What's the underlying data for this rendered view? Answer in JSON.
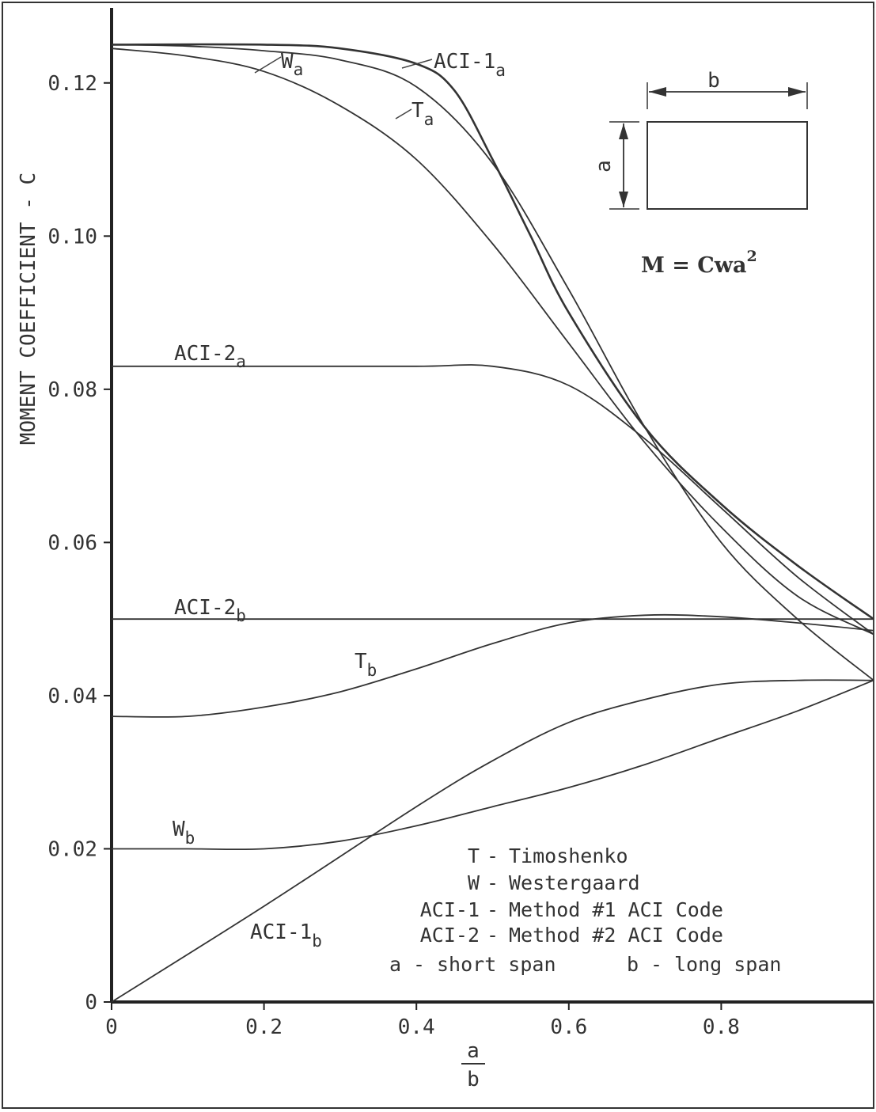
{
  "chart_data": {
    "type": "line",
    "xlabel_top": "a",
    "xlabel_bottom": "b",
    "ylabel": "MOMENT COEFFICIENT - C",
    "xlim": [
      0,
      1.0
    ],
    "ylim": [
      0,
      0.13
    ],
    "xticks": [
      "0",
      "0.2",
      "0.4",
      "0.6",
      "0.8"
    ],
    "yticks": [
      "0",
      "0.02",
      "0.04",
      "0.06",
      "0.08",
      "0.10",
      "0.12"
    ],
    "series": [
      {
        "name": "ACI-1",
        "sub": "a",
        "x": [
          0,
          0.2,
          0.3,
          0.4,
          0.45,
          0.5,
          0.55,
          0.6,
          0.7,
          0.8,
          0.9,
          1.0
        ],
        "y": [
          0.125,
          0.125,
          0.1245,
          0.1225,
          0.119,
          0.11,
          0.1,
          0.09,
          0.075,
          0.065,
          0.057,
          0.05
        ]
      },
      {
        "name": "W",
        "sub": "a",
        "x": [
          0,
          0.1,
          0.2,
          0.3,
          0.4,
          0.5,
          0.6,
          0.7,
          0.8,
          0.9,
          1.0
        ],
        "y": [
          0.1245,
          0.1235,
          0.1215,
          0.117,
          0.11,
          0.099,
          0.086,
          0.073,
          0.062,
          0.053,
          0.048
        ]
      },
      {
        "name": "T",
        "sub": "a",
        "x": [
          0,
          0.1,
          0.2,
          0.3,
          0.4,
          0.5,
          0.6,
          0.7,
          0.8,
          0.9,
          1.0
        ],
        "y": [
          0.125,
          0.1248,
          0.1242,
          0.123,
          0.1195,
          0.1095,
          0.093,
          0.075,
          0.06,
          0.05,
          0.042
        ]
      },
      {
        "name": "ACI-2",
        "sub": "a",
        "x": [
          0,
          0.2,
          0.4,
          0.5,
          0.6,
          0.7,
          0.8,
          0.9,
          1.0
        ],
        "y": [
          0.083,
          0.083,
          0.083,
          0.083,
          0.0805,
          0.0735,
          0.0645,
          0.0555,
          0.048
        ]
      },
      {
        "name": "ACI-2",
        "sub": "b",
        "x": [
          0,
          1.0
        ],
        "y": [
          0.05,
          0.05
        ]
      },
      {
        "name": "T",
        "sub": "b",
        "x": [
          0,
          0.1,
          0.2,
          0.3,
          0.4,
          0.5,
          0.6,
          0.7,
          0.8,
          0.9,
          1.0
        ],
        "y": [
          0.0373,
          0.0373,
          0.0385,
          0.0405,
          0.0435,
          0.0468,
          0.0495,
          0.0505,
          0.0503,
          0.0495,
          0.0485
        ]
      },
      {
        "name": "W",
        "sub": "b",
        "x": [
          0,
          0.1,
          0.2,
          0.3,
          0.4,
          0.5,
          0.6,
          0.7,
          0.8,
          0.9,
          1.0
        ],
        "y": [
          0.02,
          0.02,
          0.02,
          0.021,
          0.023,
          0.0255,
          0.028,
          0.031,
          0.0345,
          0.038,
          0.042
        ]
      },
      {
        "name": "ACI-1",
        "sub": "b",
        "x": [
          0,
          0.2,
          0.4,
          0.5,
          0.6,
          0.7,
          0.8,
          0.9,
          1.0
        ],
        "y": [
          0,
          0.0125,
          0.0255,
          0.0315,
          0.0365,
          0.0395,
          0.0415,
          0.042,
          0.042
        ]
      }
    ],
    "legend": [
      {
        "key": "T",
        "text": "Timoshenko"
      },
      {
        "key": "W",
        "text": "Westergaard"
      },
      {
        "key": "ACI-1",
        "text": "Method #1 ACI Code"
      },
      {
        "key": "ACI-2",
        "text": "Method #2 ACI Code"
      }
    ],
    "legend_spans": {
      "a_key": "a",
      "a_text": "short span",
      "b_key": "b",
      "b_text": "long span"
    },
    "inset": {
      "dim_b": "b",
      "dim_a": "a",
      "formula": "M = Cwa",
      "formula_sup": "2"
    }
  }
}
